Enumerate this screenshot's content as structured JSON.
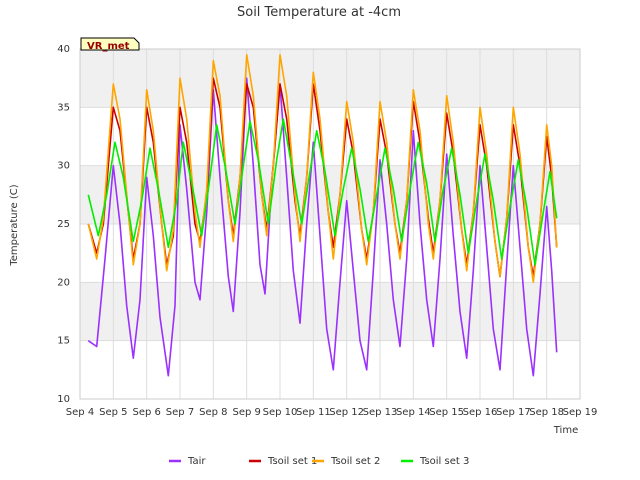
{
  "chart_data": {
    "type": "line",
    "title": "Soil Temperature at -4cm",
    "xlabel": "Time",
    "ylabel": "Temperature (C)",
    "site_tag": "VR_met",
    "ylim": [
      10,
      40
    ],
    "yticks": [
      10,
      15,
      20,
      25,
      30,
      35,
      40
    ],
    "xlim": [
      4,
      19
    ],
    "xticks": [
      4,
      5,
      6,
      7,
      8,
      9,
      10,
      11,
      12,
      13,
      14,
      15,
      16,
      17,
      18,
      19
    ],
    "xtick_labels": [
      "Sep 4",
      "Sep 5",
      "Sep 6",
      "Sep 7",
      "Sep 8",
      "Sep 9",
      "Sep 10",
      "Sep 11",
      "Sep 12",
      "Sep 13",
      "Sep 14",
      "Sep 15",
      "Sep 16",
      "Sep 17",
      "Sep 18",
      "Sep 19"
    ],
    "background_bands": "alternating light gray horizontal bands",
    "legend_position": "bottom-center",
    "series": [
      {
        "name": "Tair",
        "color": "#9b30ff",
        "points": [
          [
            4.25,
            15.0
          ],
          [
            4.5,
            14.5
          ],
          [
            4.75,
            22.0
          ],
          [
            5.0,
            30.0
          ],
          [
            5.2,
            25.0
          ],
          [
            5.4,
            18.0
          ],
          [
            5.6,
            13.5
          ],
          [
            5.8,
            18.5
          ],
          [
            6.0,
            29.0
          ],
          [
            6.2,
            24.0
          ],
          [
            6.4,
            17.0
          ],
          [
            6.65,
            12.0
          ],
          [
            6.85,
            18.0
          ],
          [
            7.0,
            33.5
          ],
          [
            7.2,
            28.0
          ],
          [
            7.45,
            20.0
          ],
          [
            7.6,
            18.5
          ],
          [
            7.8,
            26.0
          ],
          [
            8.0,
            36.5
          ],
          [
            8.2,
            29.0
          ],
          [
            8.45,
            20.5
          ],
          [
            8.6,
            17.5
          ],
          [
            8.8,
            26.0
          ],
          [
            9.0,
            37.5
          ],
          [
            9.2,
            30.0
          ],
          [
            9.4,
            21.5
          ],
          [
            9.55,
            19.0
          ],
          [
            9.75,
            28.5
          ],
          [
            10.0,
            37.0
          ],
          [
            10.2,
            29.0
          ],
          [
            10.4,
            21.0
          ],
          [
            10.6,
            16.5
          ],
          [
            10.8,
            25.0
          ],
          [
            11.0,
            32.0
          ],
          [
            11.2,
            24.0
          ],
          [
            11.4,
            16.0
          ],
          [
            11.6,
            12.5
          ],
          [
            11.8,
            20.0
          ],
          [
            12.0,
            27.0
          ],
          [
            12.2,
            21.0
          ],
          [
            12.4,
            15.0
          ],
          [
            12.6,
            12.5
          ],
          [
            12.8,
            21.0
          ],
          [
            13.0,
            30.5
          ],
          [
            13.2,
            25.0
          ],
          [
            13.4,
            18.5
          ],
          [
            13.6,
            14.5
          ],
          [
            13.8,
            22.0
          ],
          [
            14.0,
            33.0
          ],
          [
            14.2,
            25.0
          ],
          [
            14.4,
            18.5
          ],
          [
            14.6,
            14.5
          ],
          [
            14.8,
            22.0
          ],
          [
            15.0,
            31.0
          ],
          [
            15.2,
            24.0
          ],
          [
            15.4,
            17.5
          ],
          [
            15.6,
            13.5
          ],
          [
            15.8,
            21.0
          ],
          [
            16.0,
            30.0
          ],
          [
            16.2,
            23.0
          ],
          [
            16.4,
            16.0
          ],
          [
            16.6,
            12.5
          ],
          [
            16.8,
            21.5
          ],
          [
            17.0,
            30.0
          ],
          [
            17.2,
            23.0
          ],
          [
            17.4,
            16.0
          ],
          [
            17.6,
            12.0
          ],
          [
            17.8,
            19.0
          ],
          [
            18.0,
            26.5
          ],
          [
            18.15,
            21.0
          ],
          [
            18.3,
            14.0
          ]
        ]
      },
      {
        "name": "Tsoil set 1",
        "color": "#cc0000",
        "points": [
          [
            4.25,
            25.0
          ],
          [
            4.5,
            22.5
          ],
          [
            4.7,
            25.0
          ],
          [
            5.0,
            35.0
          ],
          [
            5.2,
            33.0
          ],
          [
            5.45,
            26.0
          ],
          [
            5.6,
            22.0
          ],
          [
            5.8,
            25.0
          ],
          [
            6.0,
            35.0
          ],
          [
            6.2,
            32.0
          ],
          [
            6.45,
            25.0
          ],
          [
            6.6,
            21.5
          ],
          [
            6.8,
            24.0
          ],
          [
            7.0,
            35.0
          ],
          [
            7.2,
            32.0
          ],
          [
            7.45,
            25.0
          ],
          [
            7.6,
            23.5
          ],
          [
            7.8,
            27.5
          ],
          [
            8.0,
            37.5
          ],
          [
            8.2,
            35.0
          ],
          [
            8.45,
            27.0
          ],
          [
            8.6,
            24.0
          ],
          [
            8.8,
            29.0
          ],
          [
            9.0,
            37.0
          ],
          [
            9.2,
            35.0
          ],
          [
            9.45,
            27.5
          ],
          [
            9.6,
            24.5
          ],
          [
            9.8,
            30.0
          ],
          [
            10.0,
            37.0
          ],
          [
            10.2,
            34.0
          ],
          [
            10.45,
            27.0
          ],
          [
            10.6,
            24.0
          ],
          [
            10.8,
            29.0
          ],
          [
            11.0,
            37.0
          ],
          [
            11.2,
            33.0
          ],
          [
            11.45,
            26.0
          ],
          [
            11.6,
            23.0
          ],
          [
            11.8,
            27.5
          ],
          [
            12.0,
            34.0
          ],
          [
            12.2,
            31.0
          ],
          [
            12.45,
            24.5
          ],
          [
            12.6,
            22.0
          ],
          [
            12.8,
            26.0
          ],
          [
            13.0,
            34.0
          ],
          [
            13.2,
            31.0
          ],
          [
            13.45,
            25.0
          ],
          [
            13.6,
            22.5
          ],
          [
            13.8,
            27.0
          ],
          [
            14.0,
            35.5
          ],
          [
            14.2,
            32.0
          ],
          [
            14.45,
            25.5
          ],
          [
            14.6,
            22.5
          ],
          [
            14.8,
            27.0
          ],
          [
            15.0,
            34.5
          ],
          [
            15.2,
            31.0
          ],
          [
            15.45,
            24.5
          ],
          [
            15.6,
            21.5
          ],
          [
            15.8,
            26.0
          ],
          [
            16.0,
            33.5
          ],
          [
            16.2,
            30.0
          ],
          [
            16.45,
            23.5
          ],
          [
            16.6,
            20.5
          ],
          [
            16.8,
            25.5
          ],
          [
            17.0,
            33.5
          ],
          [
            17.2,
            30.0
          ],
          [
            17.45,
            23.0
          ],
          [
            17.6,
            20.5
          ],
          [
            17.8,
            25.0
          ],
          [
            18.0,
            32.5
          ],
          [
            18.15,
            29.0
          ],
          [
            18.3,
            23.0
          ]
        ]
      },
      {
        "name": "Tsoil set 2",
        "color": "#ffa500",
        "points": [
          [
            4.25,
            25.0
          ],
          [
            4.5,
            22.0
          ],
          [
            4.7,
            25.5
          ],
          [
            5.0,
            37.0
          ],
          [
            5.2,
            34.0
          ],
          [
            5.45,
            26.0
          ],
          [
            5.6,
            21.5
          ],
          [
            5.8,
            25.0
          ],
          [
            6.0,
            36.5
          ],
          [
            6.2,
            33.0
          ],
          [
            6.45,
            25.0
          ],
          [
            6.6,
            21.0
          ],
          [
            6.8,
            24.5
          ],
          [
            7.0,
            37.5
          ],
          [
            7.2,
            34.0
          ],
          [
            7.45,
            26.0
          ],
          [
            7.6,
            23.0
          ],
          [
            7.8,
            28.0
          ],
          [
            8.0,
            39.0
          ],
          [
            8.2,
            36.0
          ],
          [
            8.45,
            27.0
          ],
          [
            8.6,
            23.5
          ],
          [
            8.8,
            29.0
          ],
          [
            9.0,
            39.5
          ],
          [
            9.2,
            36.0
          ],
          [
            9.45,
            27.5
          ],
          [
            9.6,
            24.0
          ],
          [
            9.8,
            30.0
          ],
          [
            10.0,
            39.5
          ],
          [
            10.2,
            36.0
          ],
          [
            10.45,
            27.5
          ],
          [
            10.6,
            23.5
          ],
          [
            10.8,
            29.0
          ],
          [
            11.0,
            38.0
          ],
          [
            11.2,
            34.0
          ],
          [
            11.45,
            26.0
          ],
          [
            11.6,
            22.0
          ],
          [
            11.8,
            27.5
          ],
          [
            12.0,
            35.5
          ],
          [
            12.2,
            32.0
          ],
          [
            12.45,
            24.5
          ],
          [
            12.6,
            21.5
          ],
          [
            12.8,
            26.0
          ],
          [
            13.0,
            35.5
          ],
          [
            13.2,
            32.0
          ],
          [
            13.45,
            25.0
          ],
          [
            13.6,
            22.0
          ],
          [
            13.8,
            27.0
          ],
          [
            14.0,
            36.5
          ],
          [
            14.2,
            33.0
          ],
          [
            14.45,
            25.0
          ],
          [
            14.6,
            22.0
          ],
          [
            14.8,
            27.0
          ],
          [
            15.0,
            36.0
          ],
          [
            15.2,
            32.0
          ],
          [
            15.45,
            24.5
          ],
          [
            15.6,
            21.0
          ],
          [
            15.8,
            26.0
          ],
          [
            16.0,
            35.0
          ],
          [
            16.2,
            31.0
          ],
          [
            16.45,
            23.5
          ],
          [
            16.6,
            20.5
          ],
          [
            16.8,
            25.5
          ],
          [
            17.0,
            35.0
          ],
          [
            17.2,
            31.0
          ],
          [
            17.45,
            23.0
          ],
          [
            17.6,
            20.0
          ],
          [
            17.8,
            25.0
          ],
          [
            18.0,
            33.5
          ],
          [
            18.15,
            30.0
          ],
          [
            18.3,
            23.0
          ]
        ]
      },
      {
        "name": "Tsoil set 3",
        "color": "#00ee00",
        "points": [
          [
            4.25,
            27.5
          ],
          [
            4.55,
            24.0
          ],
          [
            4.8,
            27.5
          ],
          [
            5.05,
            32.0
          ],
          [
            5.3,
            29.0
          ],
          [
            5.6,
            23.5
          ],
          [
            5.85,
            27.0
          ],
          [
            6.1,
            31.5
          ],
          [
            6.35,
            28.0
          ],
          [
            6.65,
            23.0
          ],
          [
            6.9,
            27.0
          ],
          [
            7.1,
            32.0
          ],
          [
            7.35,
            28.5
          ],
          [
            7.65,
            24.0
          ],
          [
            7.9,
            29.0
          ],
          [
            8.1,
            33.5
          ],
          [
            8.35,
            30.0
          ],
          [
            8.65,
            25.0
          ],
          [
            8.9,
            30.0
          ],
          [
            9.1,
            33.8
          ],
          [
            9.35,
            30.5
          ],
          [
            9.65,
            25.0
          ],
          [
            9.9,
            30.5
          ],
          [
            10.1,
            34.0
          ],
          [
            10.35,
            30.0
          ],
          [
            10.65,
            25.0
          ],
          [
            10.9,
            29.5
          ],
          [
            11.1,
            33.0
          ],
          [
            11.35,
            29.5
          ],
          [
            11.65,
            24.0
          ],
          [
            11.9,
            28.0
          ],
          [
            12.15,
            31.5
          ],
          [
            12.4,
            28.0
          ],
          [
            12.65,
            23.5
          ],
          [
            12.9,
            27.5
          ],
          [
            13.15,
            31.5
          ],
          [
            13.4,
            28.0
          ],
          [
            13.65,
            23.5
          ],
          [
            13.9,
            28.0
          ],
          [
            14.15,
            32.0
          ],
          [
            14.4,
            28.5
          ],
          [
            14.65,
            23.5
          ],
          [
            14.9,
            28.0
          ],
          [
            15.15,
            31.5
          ],
          [
            15.4,
            27.5
          ],
          [
            15.65,
            22.5
          ],
          [
            15.9,
            27.0
          ],
          [
            16.15,
            31.0
          ],
          [
            16.4,
            27.0
          ],
          [
            16.65,
            22.0
          ],
          [
            16.9,
            26.5
          ],
          [
            17.15,
            30.5
          ],
          [
            17.4,
            26.5
          ],
          [
            17.65,
            21.5
          ],
          [
            17.9,
            26.0
          ],
          [
            18.1,
            29.5
          ],
          [
            18.3,
            25.5
          ]
        ]
      }
    ]
  }
}
